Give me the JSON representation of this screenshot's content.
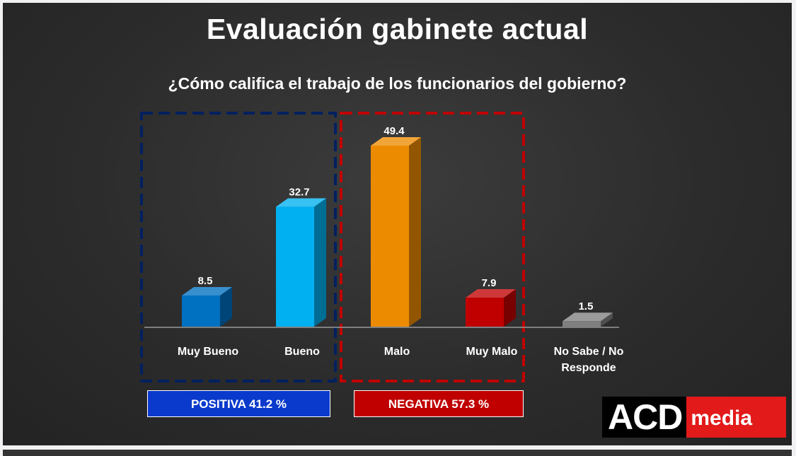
{
  "chart_data": {
    "type": "bar",
    "title": "Evaluación gabinete actual",
    "subtitle": "¿Cómo califica el trabajo de los funcionarios del gobierno?",
    "categories": [
      "Muy Bueno",
      "Bueno",
      "Malo",
      "Muy Malo",
      "No Sabe / No Responde"
    ],
    "category_lines": [
      [
        "Muy Bueno"
      ],
      [
        "Bueno"
      ],
      [
        "Malo"
      ],
      [
        "Muy Malo"
      ],
      [
        "No Sabe / No",
        "Responde"
      ]
    ],
    "values": [
      8.5,
      32.7,
      49.4,
      7.9,
      1.5
    ],
    "value_labels": [
      "8.5",
      "32.7",
      "49.4",
      "7.9",
      "1.5"
    ],
    "bar_colors": [
      "#0070c0",
      "#00b0f0",
      "#ed8b00",
      "#c00000",
      "#7f7f7f"
    ],
    "style": "3d-bar",
    "grid": false,
    "groups": [
      {
        "label": "POSITIVA 41.2 %",
        "categories": [
          "Muy Bueno",
          "Bueno"
        ],
        "frame_color": "#002060"
      },
      {
        "label": "NEGATIVA 57.3 %",
        "categories": [
          "Malo",
          "Muy Malo"
        ],
        "frame_color": "#c00000"
      }
    ]
  },
  "logo": {
    "part1": "ACD",
    "part2": "media"
  }
}
